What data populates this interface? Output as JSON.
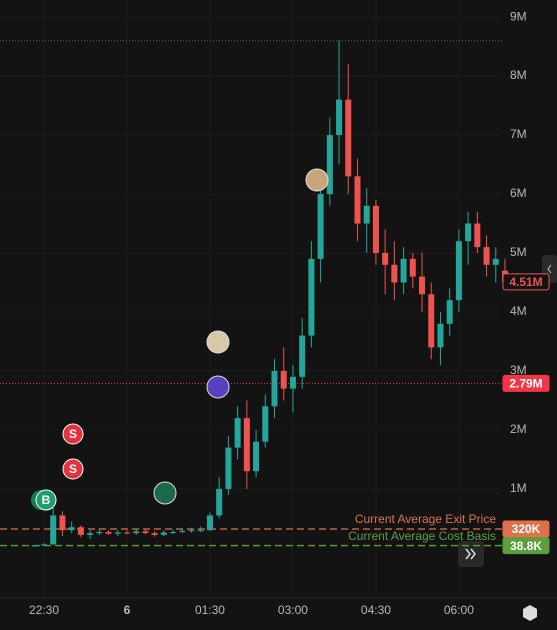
{
  "chart_data": {
    "type": "candlestick",
    "categories": [
      null,
      null,
      null,
      null,
      null,
      null,
      null,
      null,
      null,
      null,
      null,
      null,
      null,
      null,
      null,
      null,
      null,
      null,
      null,
      null,
      null,
      null,
      null,
      null,
      null,
      null,
      null,
      null,
      null,
      null,
      null,
      null,
      null,
      null,
      null,
      null,
      null,
      null,
      null,
      null,
      null,
      null,
      null,
      null,
      null,
      null,
      null,
      null,
      null,
      null,
      null,
      null
    ],
    "open": [
      0.03,
      0.04,
      0.06,
      0.55,
      0.3,
      0.35,
      0.22,
      0.25,
      0.27,
      0.24,
      0.26,
      0.25,
      0.28,
      0.25,
      0.22,
      0.26,
      0.27,
      0.29,
      0.3,
      0.3,
      0.55,
      1.0,
      1.7,
      2.2,
      1.3,
      1.8,
      2.4,
      3.0,
      2.7,
      2.9,
      3.6,
      4.9,
      6.0,
      7.0,
      7.6,
      6.3,
      5.5,
      5.8,
      5.0,
      4.8,
      4.5,
      4.9,
      4.6,
      4.3,
      3.4,
      3.8,
      4.2,
      5.2,
      5.5,
      5.1,
      4.8,
      4.7
    ],
    "high": [
      0.05,
      0.08,
      0.9,
      0.62,
      0.45,
      0.38,
      0.3,
      0.32,
      0.3,
      0.3,
      0.3,
      0.31,
      0.32,
      0.28,
      0.3,
      0.31,
      0.33,
      0.34,
      0.36,
      0.6,
      1.2,
      1.9,
      2.4,
      2.5,
      2.0,
      2.6,
      3.2,
      3.4,
      3.1,
      3.9,
      5.2,
      6.3,
      7.3,
      8.6,
      8.2,
      6.6,
      6.1,
      5.9,
      5.4,
      5.2,
      5.1,
      5.0,
      5.0,
      4.5,
      4.0,
      4.4,
      5.4,
      5.7,
      5.7,
      5.3,
      5.1,
      4.9
    ],
    "low": [
      0.02,
      0.03,
      0.05,
      0.2,
      0.25,
      0.18,
      0.15,
      0.22,
      0.22,
      0.2,
      0.23,
      0.22,
      0.23,
      0.19,
      0.2,
      0.23,
      0.25,
      0.26,
      0.27,
      0.28,
      0.5,
      0.9,
      1.5,
      1.0,
      1.2,
      1.7,
      2.2,
      2.5,
      2.3,
      2.7,
      3.4,
      4.5,
      5.8,
      6.5,
      6.0,
      5.2,
      5.0,
      4.8,
      4.3,
      4.2,
      4.3,
      4.4,
      4.0,
      3.2,
      3.1,
      3.6,
      4.0,
      4.8,
      5.0,
      4.6,
      4.5,
      4.4
    ],
    "close": [
      0.04,
      0.06,
      0.55,
      0.3,
      0.35,
      0.22,
      0.25,
      0.27,
      0.24,
      0.26,
      0.25,
      0.28,
      0.25,
      0.22,
      0.26,
      0.27,
      0.29,
      0.3,
      0.3,
      0.55,
      1.0,
      1.7,
      2.2,
      1.3,
      1.8,
      2.4,
      3.0,
      2.7,
      2.9,
      3.6,
      4.9,
      6.0,
      7.0,
      7.6,
      6.3,
      5.5,
      5.8,
      5.0,
      4.8,
      4.5,
      4.9,
      4.6,
      4.3,
      3.4,
      3.8,
      4.2,
      5.2,
      5.5,
      5.1,
      4.8,
      4.9,
      4.51
    ],
    "up_color": "#26a69a",
    "down_color": "#ef5350",
    "ylim": [
      -0.85,
      9.29
    ],
    "yticks": [
      {
        "value": 1,
        "label": "1M"
      },
      {
        "value": 2,
        "label": "2M"
      },
      {
        "value": 3,
        "label": "3M"
      },
      {
        "value": 4,
        "label": "4M"
      },
      {
        "value": 5,
        "label": "5M"
      },
      {
        "value": 6,
        "label": "6M"
      },
      {
        "value": 7,
        "label": "7M"
      },
      {
        "value": 8,
        "label": "8M"
      },
      {
        "value": 9,
        "label": "9M"
      }
    ],
    "xticks": [
      {
        "value": 1,
        "label": "22:30"
      },
      {
        "value": 10,
        "label": "6"
      },
      {
        "value": 19,
        "label": "01:30"
      },
      {
        "value": 28,
        "label": "03:00"
      },
      {
        "value": 37,
        "label": "04:30"
      },
      {
        "value": 46,
        "label": "06:00"
      }
    ],
    "grid": true,
    "high_line": {
      "value": 8.6,
      "color": "#666666"
    },
    "last_price": {
      "value": 4.51,
      "label": "4.51M",
      "color": "#ef5350"
    },
    "price_lines": [
      {
        "value": 2.79,
        "label": "2.79M",
        "color": "#f23645"
      },
      {
        "value": 0.32,
        "label": "320K",
        "text": "Current Average Exit Price",
        "color": "#e0704a"
      },
      {
        "value": 0.0388,
        "label": "38.8K",
        "text": "Current Average Cost Basis",
        "color": "#5b9e3c"
      }
    ],
    "trades": [
      "B",
      "S",
      "S"
    ]
  }
}
